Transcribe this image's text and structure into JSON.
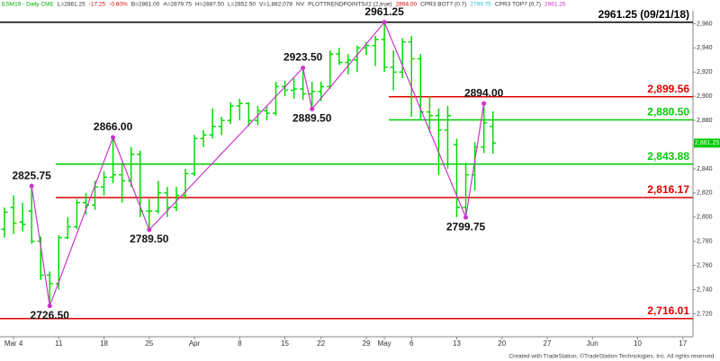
{
  "chart_data": {
    "type": "ohlc",
    "header": [
      {
        "text": "ESM19 - Daily CME",
        "color": "#00aa00"
      },
      {
        "text": "L=2861.25",
        "color": "#333333"
      },
      {
        "text": "-17.25",
        "color": "#dd0000"
      },
      {
        "text": "-0.60%",
        "color": "#dd0000"
      },
      {
        "text": "B=2861.00",
        "color": "#333333"
      },
      {
        "text": "A=2879.75",
        "color": "#333333"
      },
      {
        "text": "H=2887.50",
        "color": "#333333"
      },
      {
        "text": "L=2852.50",
        "color": "#333333"
      },
      {
        "text": "V=1,882,078",
        "color": "#333333"
      },
      {
        "text": "NV",
        "color": "#333333"
      },
      {
        "text": "PLOTTRENDPOINTS#2 (2,true)",
        "color": "#333333"
      },
      {
        "text": "2894.00",
        "color": "#dd0000"
      },
      {
        "text": "CPR3 BOT7 (0.7)",
        "color": "#333333"
      },
      {
        "text": "2799.75",
        "color": "#33bbdd"
      },
      {
        "text": "CPR3 TOP7 (0.7)",
        "color": "#333333"
      },
      {
        "text": "2961.25",
        "color": "#cc33cc"
      }
    ],
    "categories": [
      null,
      "Mar 4",
      null,
      null,
      null,
      null,
      "11",
      null,
      null,
      null,
      null,
      "18",
      null,
      null,
      null,
      null,
      "25",
      null,
      null,
      null,
      null,
      "Apr",
      null,
      null,
      null,
      null,
      "8",
      null,
      null,
      null,
      null,
      "15",
      null,
      null,
      null,
      "22",
      null,
      null,
      null,
      null,
      "29",
      null,
      "May",
      null,
      null,
      "6",
      null,
      null,
      null,
      null,
      "13",
      null,
      null,
      null,
      null,
      "20",
      null,
      null,
      null,
      null,
      "27",
      null,
      null,
      null,
      null,
      "Jun",
      null,
      null,
      null,
      null,
      "10",
      null,
      null,
      null,
      null,
      "17"
    ],
    "open": [
      2790,
      2808,
      2796,
      2805,
      2780,
      2752,
      2745,
      2783,
      2792,
      2812,
      2810,
      2825,
      2833,
      2835,
      2830,
      2852,
      2805,
      2805,
      2820,
      2808,
      2818,
      2836,
      2865,
      2868,
      2875,
      2880,
      2892,
      2894,
      2880,
      2888,
      2886,
      2908,
      2905,
      2906,
      2902,
      2904,
      2908,
      2935,
      2928,
      2930,
      2940,
      2942,
      2947,
      2924,
      2920,
      2945,
      2931,
      2887,
      2884,
      2872,
      2860,
      2808,
      2835,
      2858,
      2875,
      null,
      null,
      null,
      null,
      null,
      null,
      null,
      null,
      null,
      null,
      null,
      null,
      null,
      null,
      null,
      null,
      null,
      null,
      null,
      null,
      null
    ],
    "high": [
      2808,
      2818,
      2812,
      2825.75,
      2784,
      2755,
      2785,
      2800,
      2815,
      2820,
      2830,
      2838,
      2866,
      2845,
      2858,
      2855,
      2815,
      2830,
      2825,
      2825,
      2840,
      2868,
      2872,
      2890,
      2883,
      2895,
      2898,
      2895,
      2892,
      2892,
      2912,
      2913,
      2915,
      2923.5,
      2912,
      2912,
      2938,
      2940,
      2935,
      2942,
      2945,
      2950,
      2961.25,
      2938,
      2948,
      2950,
      2935,
      2900,
      2890,
      2892,
      2865,
      2845,
      2862,
      2894,
      2887.5,
      null,
      null,
      null,
      null,
      null,
      null,
      null,
      null,
      null,
      null,
      null,
      null,
      null,
      null,
      null,
      null,
      null,
      null,
      null,
      null,
      null
    ],
    "low": [
      2783,
      2786,
      2788,
      2778,
      2748,
      2726.5,
      2740,
      2782,
      2790,
      2802,
      2806,
      2818,
      2828,
      2812,
      2825,
      2800,
      2789.5,
      2803,
      2800,
      2805,
      2815,
      2834,
      2858,
      2865,
      2868,
      2877,
      2880,
      2875,
      2876,
      2880,
      2884,
      2900,
      2898,
      2897,
      2889.5,
      2896,
      2906,
      2926,
      2918,
      2920,
      2934,
      2925,
      2920,
      2905,
      2915,
      2883,
      2880,
      2870,
      2835,
      2840,
      2800,
      2799.75,
      2822,
      2853,
      2852.5,
      null,
      null,
      null,
      null,
      null,
      null,
      null,
      null,
      null,
      null,
      null,
      null,
      null,
      null,
      null,
      null,
      null,
      null,
      null,
      null,
      null
    ],
    "close": [
      2804,
      2795,
      2794,
      2780,
      2752,
      2745,
      2783,
      2792,
      2812,
      2810,
      2825,
      2833,
      2835,
      2830,
      2852,
      2805,
      2805,
      2820,
      2808,
      2818,
      2836,
      2865,
      2868,
      2875,
      2880,
      2892,
      2894,
      2880,
      2888,
      2886,
      2908,
      2905,
      2906,
      2902,
      2904,
      2908,
      2935,
      2928,
      2930,
      2940,
      2942,
      2947,
      2924,
      2920,
      2945,
      2931,
      2887,
      2884,
      2872,
      2884,
      2808,
      2835,
      2858,
      2878,
      2861.25,
      null,
      null,
      null,
      null,
      null,
      null,
      null,
      null,
      null,
      null,
      null,
      null,
      null,
      null,
      null,
      null,
      null,
      null,
      null,
      null,
      null
    ],
    "color": "#00dd00",
    "pivots": {
      "color": "#cc33cc",
      "values": [
        null,
        null,
        null,
        2825.75,
        null,
        2726.5,
        null,
        null,
        null,
        null,
        null,
        null,
        2866,
        null,
        null,
        null,
        2789.5,
        null,
        null,
        null,
        null,
        null,
        null,
        null,
        null,
        null,
        null,
        null,
        null,
        null,
        null,
        null,
        null,
        2923.5,
        2889.5,
        null,
        null,
        null,
        null,
        null,
        null,
        null,
        2961.25,
        null,
        null,
        null,
        null,
        null,
        null,
        null,
        null,
        2799.75,
        null,
        2894,
        null,
        null,
        null,
        null,
        null,
        null,
        null,
        null,
        null,
        null,
        null,
        null,
        null,
        null,
        null,
        null,
        null,
        null,
        null,
        null,
        null,
        null
      ],
      "value_labels": [
        null,
        null,
        null,
        "2825.75",
        null,
        "2726.50",
        null,
        null,
        null,
        null,
        null,
        null,
        "2866.00",
        null,
        null,
        null,
        "2789.50",
        null,
        null,
        null,
        null,
        null,
        null,
        null,
        null,
        null,
        null,
        null,
        null,
        null,
        null,
        null,
        null,
        "2923.50",
        "2889.50",
        null,
        null,
        null,
        null,
        null,
        null,
        null,
        "2961.25",
        null,
        null,
        null,
        null,
        null,
        null,
        null,
        null,
        "2799.75",
        null,
        "2894.00",
        null,
        null,
        null,
        null,
        null,
        null,
        null,
        null,
        null,
        null,
        null,
        null,
        null,
        null,
        null,
        null,
        null,
        null,
        null,
        null,
        null,
        null
      ]
    },
    "levels": [
      {
        "value": 2961.25,
        "label": "2961.25 (09/21/18)",
        "color": "#000000"
      },
      {
        "value": 2899.56,
        "label": "2,899.56",
        "color": "#e00000"
      },
      {
        "value": 2880.5,
        "label": "2,880.50",
        "color": "#00cc00"
      },
      {
        "value": 2843.88,
        "label": "2,843.88",
        "color": "#00cc00"
      },
      {
        "value": 2816.17,
        "label": "2,816.17",
        "color": "#e00000"
      },
      {
        "value": 2716.01,
        "label": "2,716.01",
        "color": "#e00000"
      }
    ],
    "last": {
      "value": 2861.25,
      "label": "2,861.25",
      "color": "#00cc00"
    },
    "ylim": [
      2701,
      2970
    ],
    "yticks": [
      {
        "value": 2720,
        "label": "2,720"
      },
      {
        "value": 2740,
        "label": "2,740"
      },
      {
        "value": 2760,
        "label": "2,760"
      },
      {
        "value": 2780,
        "label": "2,780"
      },
      {
        "value": 2800,
        "label": "2,800"
      },
      {
        "value": 2820,
        "label": "2,820"
      },
      {
        "value": 2840,
        "label": "2,840"
      },
      {
        "value": 2860,
        "label": "2,860"
      },
      {
        "value": 2880,
        "label": "2,880"
      },
      {
        "value": 2900,
        "label": "2,900"
      },
      {
        "value": 2920,
        "label": "2,920"
      },
      {
        "value": 2940,
        "label": "2,940"
      },
      {
        "value": 2960,
        "label": "2,960"
      }
    ],
    "footer": "Created with TradeStation. ©TradeStation Technologies, Inc. All rights reserved."
  }
}
